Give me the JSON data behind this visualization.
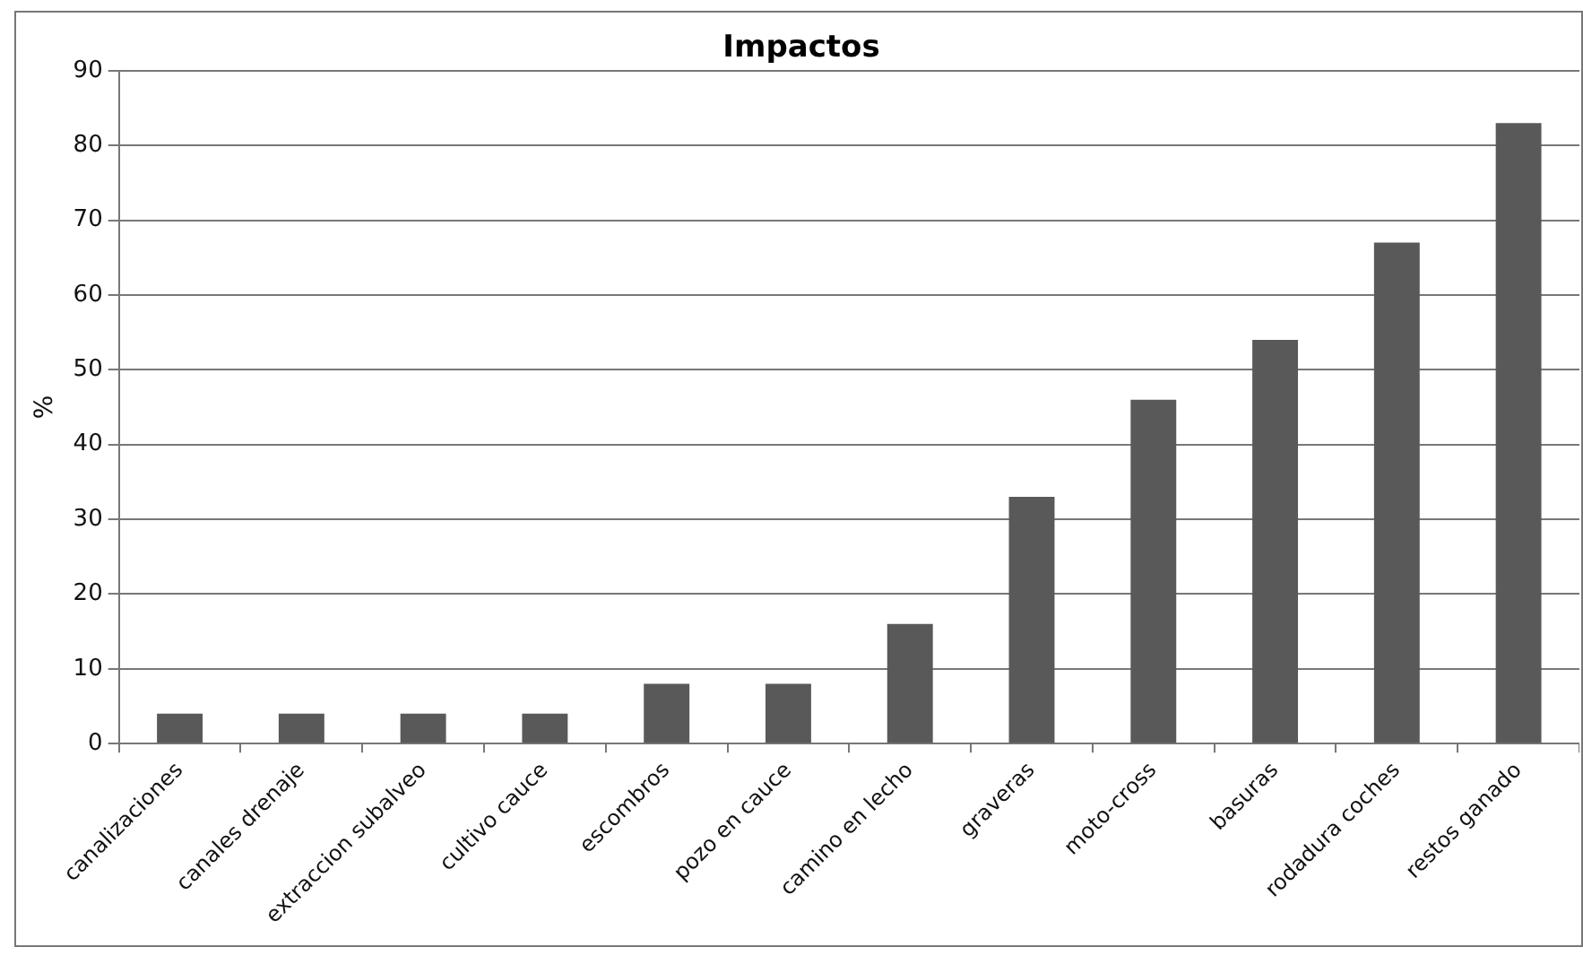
{
  "chart_data": {
    "type": "bar",
    "title": "Impactos",
    "ylabel": "%",
    "categories": [
      "canalizaciones",
      "canales drenaje",
      "extraccion subalveo",
      "cultivo cauce",
      "escombros",
      "pozo en cauce",
      "camino en lecho",
      "graveras",
      "moto-cross",
      "basuras",
      "rodadura coches",
      "restos ganado"
    ],
    "values": [
      4,
      4,
      4,
      4,
      8,
      8,
      16,
      33,
      46,
      54,
      67,
      83
    ],
    "color": "#595959",
    "ylim": [
      0,
      90
    ],
    "yticks": [
      0,
      10,
      20,
      30,
      40,
      50,
      60,
      70,
      80,
      90
    ],
    "grid": "y",
    "legend": false
  }
}
